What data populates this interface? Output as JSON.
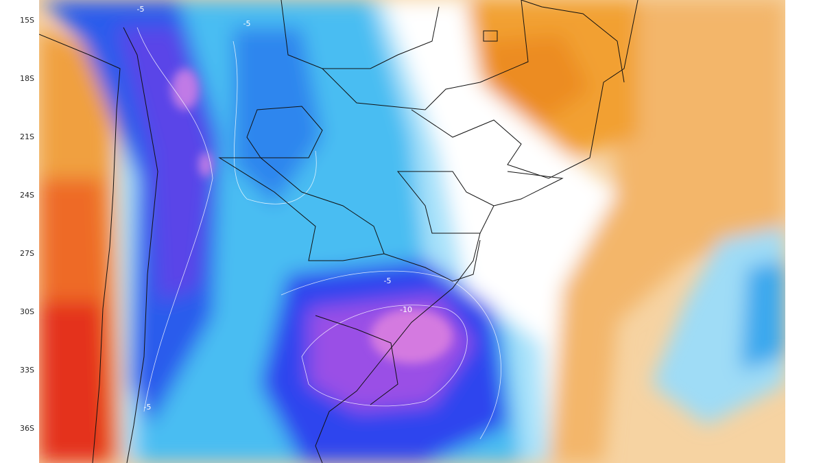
{
  "latitude_labels": [
    "15S",
    "18S",
    "21S",
    "24S",
    "27S",
    "30S",
    "33S",
    "36S"
  ],
  "contour_labels": [
    "-5",
    "-5",
    "-5",
    "-10",
    "-5"
  ]
}
